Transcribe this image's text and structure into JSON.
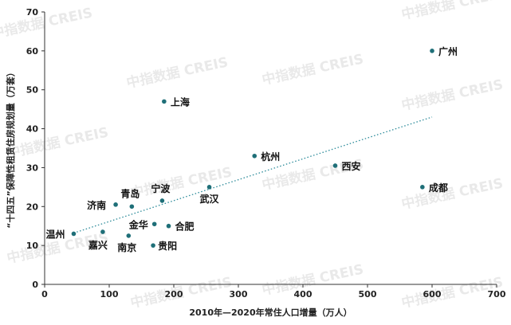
{
  "chart_data": {
    "type": "scatter",
    "title": "",
    "xlabel": "2010年—2020年常住人口增量（万人）",
    "ylabel": "“十四五”保障性租赁住房规划量（万套）",
    "xlim": [
      0,
      700
    ],
    "ylim": [
      0,
      70
    ],
    "xticks": [
      0,
      100,
      200,
      300,
      400,
      500,
      600,
      700
    ],
    "yticks": [
      0,
      10,
      20,
      30,
      40,
      50,
      60,
      70
    ],
    "grid": false,
    "legend": "none",
    "point_color": "#1f6f78",
    "trendline": {
      "style": "dotted",
      "color": "#2a8a99",
      "x": [
        45,
        600
      ],
      "y": [
        13.2,
        43
      ]
    },
    "points": [
      {
        "name": "广州",
        "x": 600,
        "y": 60
      },
      {
        "name": "上海",
        "x": 185,
        "y": 47
      },
      {
        "name": "杭州",
        "x": 325,
        "y": 33
      },
      {
        "name": "西安",
        "x": 450,
        "y": 30.5
      },
      {
        "name": "成都",
        "x": 585,
        "y": 25
      },
      {
        "name": "武汉",
        "x": 255,
        "y": 25
      },
      {
        "name": "宁波",
        "x": 182,
        "y": 21.5
      },
      {
        "name": "青岛",
        "x": 135,
        "y": 20
      },
      {
        "name": "济南",
        "x": 110,
        "y": 20.5
      },
      {
        "name": "金华",
        "x": 170,
        "y": 15.5
      },
      {
        "name": "合肥",
        "x": 192,
        "y": 15
      },
      {
        "name": "温州",
        "x": 45,
        "y": 13
      },
      {
        "name": "嘉兴",
        "x": 90,
        "y": 13.5
      },
      {
        "name": "南京",
        "x": 130,
        "y": 12.5
      },
      {
        "name": "贵阳",
        "x": 168,
        "y": 10
      }
    ]
  },
  "watermark": {
    "text": "中指数据 CREIS",
    "color": "#d8d8d8"
  }
}
